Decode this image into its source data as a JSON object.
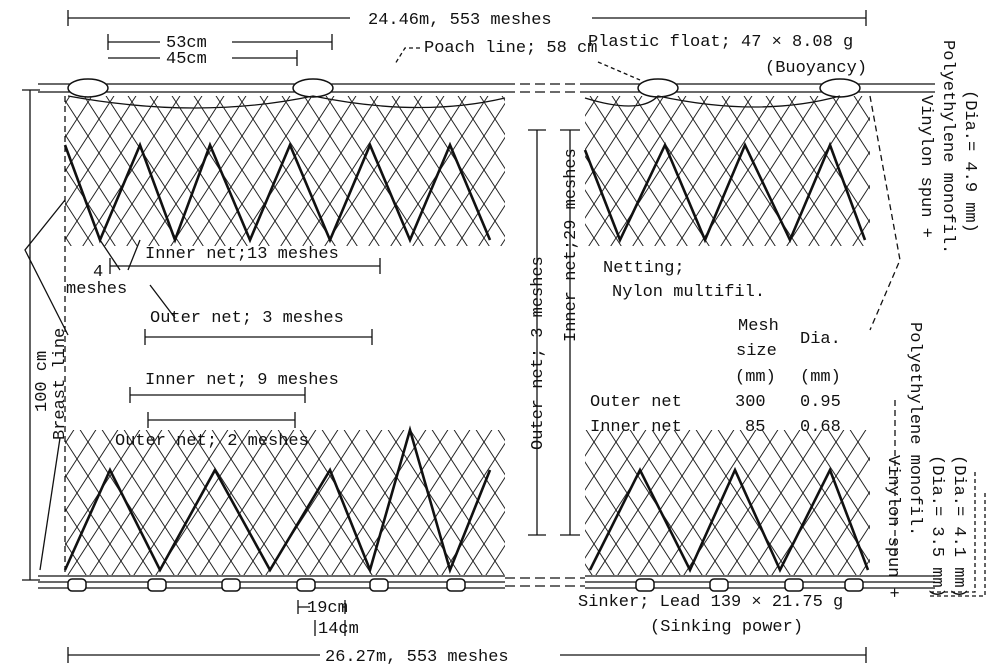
{
  "top": {
    "headrope_length": "24.46m, 553 meshes",
    "float_interval": "53cm",
    "float_interval_inner": "45cm",
    "poach_line": "Poach line; 58 cm",
    "float": "Plastic float; 47 × 8.08 g",
    "buoyancy": "(Buoyancy)"
  },
  "headrope": {
    "material": "Vinylon spun +",
    "material2": "Polyethylene monofil.",
    "diameter": "(Dia.= 4.9 mm)"
  },
  "left": {
    "inner_13": "Inner net;13 meshes",
    "four": "4",
    "meshes": "meshes",
    "outer_3": "Outer net; 3 meshes",
    "inner_9": "Inner net; 9 meshes",
    "outer_2": "Outer net; 2 meshes",
    "depth": "100 cm",
    "breast_line": "Breast line"
  },
  "middle": {
    "outer_depth": "Outer net; 3 meshes",
    "inner_depth": "Inner net;29 meshes"
  },
  "netting": {
    "title": "Netting;",
    "material": "Nylon multifil.",
    "col_mesh": [
      "Mesh",
      "size",
      "(mm)"
    ],
    "col_dia": [
      "Dia.",
      "(mm)"
    ],
    "rows": [
      [
        "Outer net",
        300,
        0.95
      ],
      [
        "Inner net",
        85,
        0.68
      ]
    ]
  },
  "footrope": {
    "material": "Vinylon spun +",
    "material2": "Polyethylene monofil.",
    "diameter1": "(Dia.= 3.5 mm)",
    "diameter2": "(Dia.= 4.1 mm)"
  },
  "bottom": {
    "sinker": "Sinker; Lead 139 × 21.75 g",
    "sinking_power": "(Sinking power)",
    "sinker_interval": "19cm",
    "sinker_interval_inner": "14cm",
    "footrope_length": "26.27m, 553 meshes"
  }
}
